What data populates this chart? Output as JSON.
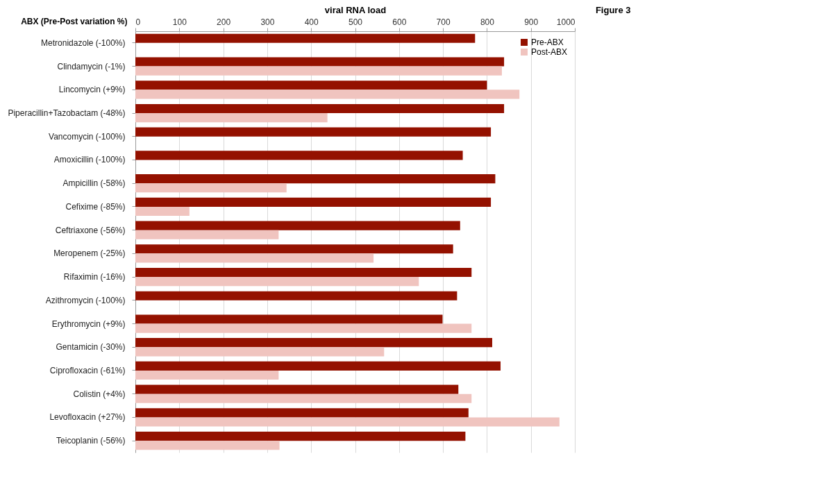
{
  "chart_data": {
    "type": "bar",
    "orientation": "horizontal",
    "xlabel": "viral RNA load",
    "ylabel": "ABX (Pre-Post variation %)",
    "annotations": [
      "Figure 3"
    ],
    "categories": [
      "Metronidazole (-100%)",
      "Clindamycin (-1%)",
      "Lincomycin (+9%)",
      "Piperacillin+Tazobactam (-48%)",
      "Vancomycin (-100%)",
      "Amoxicillin (-100%)",
      "Ampicillin (-58%)",
      "Cefixime (-85%)",
      "Ceftriaxone (-56%)",
      "Meropenem (-25%)",
      "Rifaximin (-16%)",
      "Azithromycin (-100%)",
      "Erythromycin (+9%)",
      "Gentamicin (-30%)",
      "Ciprofloxacin (-61%)",
      "Colistin (+4%)",
      "Levofloxacin (+27%)",
      "Teicoplanin (-56%)"
    ],
    "series": [
      {
        "name": "Pre-ABX",
        "color": "#941100",
        "values": [
          773,
          839,
          800,
          839,
          809,
          745,
          819,
          809,
          739,
          723,
          765,
          732,
          699,
          812,
          831,
          735,
          758,
          751
        ]
      },
      {
        "name": "Post-ABX",
        "color": "#f0c4bf",
        "values": [
          0,
          834,
          874,
          437,
          0,
          0,
          344,
          123,
          326,
          542,
          645,
          0,
          765,
          566,
          326,
          765,
          965,
          328
        ]
      }
    ],
    "xlim": [
      0,
      1000
    ],
    "xticks": [
      0,
      100,
      200,
      300,
      400,
      500,
      600,
      700,
      800,
      900,
      1000
    ],
    "grid": "x",
    "legend": "top right"
  }
}
